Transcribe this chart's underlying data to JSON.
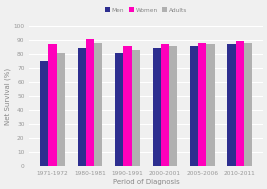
{
  "categories": [
    "1971-1972",
    "1980-1981",
    "1990-1991",
    "2000-2001",
    "2005-2006",
    "2010-2011"
  ],
  "men": [
    75,
    84,
    81,
    84,
    86,
    87
  ],
  "women": [
    87,
    91,
    86,
    87,
    88,
    89
  ],
  "adults": [
    81,
    88,
    83,
    86,
    87,
    88
  ],
  "men_color": "#2d2e8f",
  "women_color": "#ff00bb",
  "adults_color": "#b0b0b0",
  "ylabel": "Net Survival (%)",
  "xlabel": "Period of Diagnosis",
  "ylim": [
    0,
    100
  ],
  "yticks": [
    0,
    10,
    20,
    30,
    40,
    50,
    60,
    70,
    80,
    90,
    100
  ],
  "legend_labels": [
    "Men",
    "Women",
    "Adults"
  ],
  "bar_width": 0.22,
  "background_color": "#f0f0f0",
  "grid_color": "#ffffff",
  "tick_color": "#999999",
  "label_color": "#888888"
}
